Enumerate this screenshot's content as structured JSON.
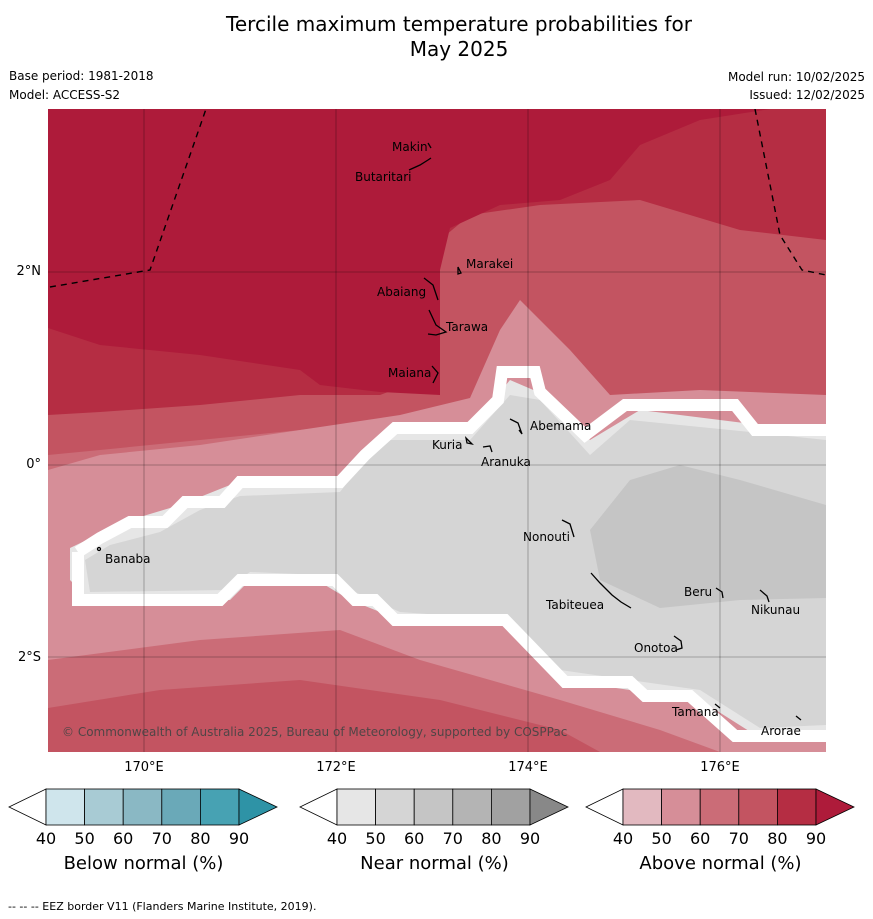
{
  "title_line1": "Tercile maximum temperature probabilities for",
  "title_line2": "May 2025",
  "base_period": "Base period: 1981-2018",
  "model": "Model: ACCESS-S2",
  "model_run": "Model run: 10/02/2025",
  "issued": "Issued: 12/02/2025",
  "copyright": "© Commonwealth of Australia 2025, Bureau of Meteorology, supported by COSPPac",
  "lat_labels": [
    "2°N",
    "0°",
    "2°S"
  ],
  "lon_labels": [
    "170°E",
    "172°E",
    "174°E",
    "176°E"
  ],
  "places": [
    "Makin",
    "Butaritari",
    "Marakei",
    "Abaiang",
    "Tarawa",
    "Maiana",
    "Abemama",
    "Kuria",
    "Aranuka",
    "Banaba",
    "Nonouti",
    "Beru",
    "Nikunau",
    "Tabiteuea",
    "Onotoa",
    "Tamana",
    "Arorae"
  ],
  "colorbars": [
    {
      "title": "Below normal (%)",
      "ticks": [
        "40",
        "50",
        "60",
        "70",
        "80",
        "90"
      ],
      "colors": [
        "#ffffff",
        "#cfe5ec",
        "#a8cbd4",
        "#8ab8c4",
        "#6aa9b8",
        "#47a2b3",
        "#2e93a6"
      ]
    },
    {
      "title": "Near normal (%)",
      "ticks": [
        "40",
        "50",
        "60",
        "70",
        "80",
        "90"
      ],
      "colors": [
        "#ffffff",
        "#e6e6e6",
        "#d5d5d5",
        "#c5c5c5",
        "#b4b4b4",
        "#a1a1a1",
        "#888888"
      ]
    },
    {
      "title": "Above normal (%)",
      "ticks": [
        "40",
        "50",
        "60",
        "70",
        "80",
        "90"
      ],
      "colors": [
        "#ffffff",
        "#e2b9c0",
        "#d68e98",
        "#cb6c77",
        "#c35461",
        "#b52d43",
        "#ae1b3a"
      ]
    }
  ],
  "footnote": "--  --  -- EEZ border V11 (Flanders Marine Institute, 2019)."
}
